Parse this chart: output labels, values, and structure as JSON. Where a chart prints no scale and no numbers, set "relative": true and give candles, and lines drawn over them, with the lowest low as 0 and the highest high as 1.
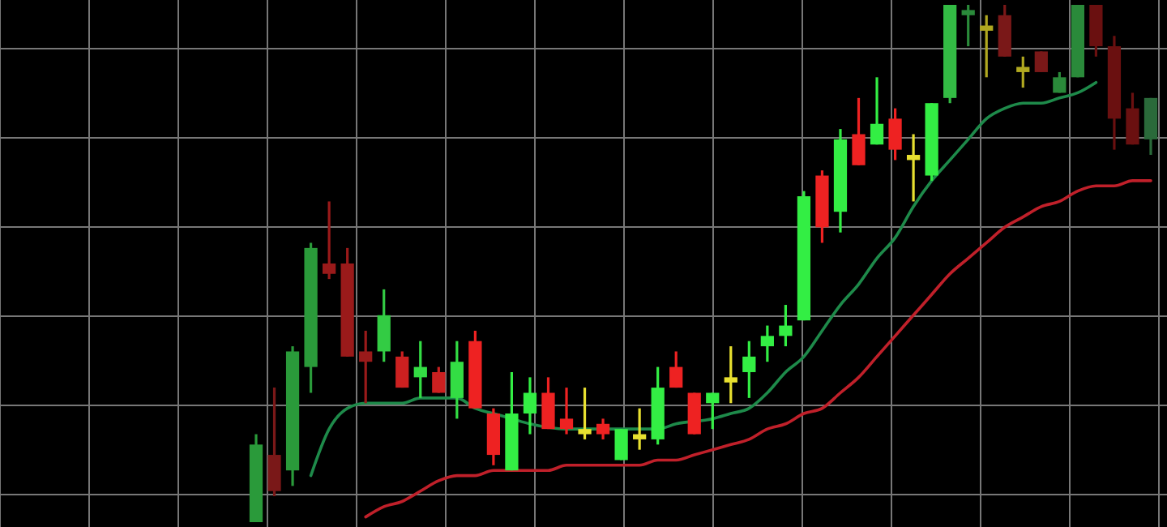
{
  "chart_data": {
    "type": "candlestick",
    "relative": true,
    "grid": true,
    "categories": [
      null,
      null,
      null,
      null,
      null,
      null,
      null,
      null,
      null,
      null,
      null,
      null,
      null,
      null,
      null,
      null,
      null,
      null,
      null,
      null,
      null,
      null,
      null,
      null,
      null,
      null,
      null,
      null,
      null,
      null,
      null,
      null,
      null,
      null,
      null,
      null,
      null,
      null,
      null,
      null,
      null,
      null,
      null,
      null,
      null,
      null,
      null,
      null,
      null,
      null
    ],
    "ohlc": [
      [
        0,
        0.17,
        0,
        0.15
      ],
      [
        0.13,
        0.26,
        0.05,
        0.06
      ],
      [
        0.1,
        0.34,
        0.07,
        0.33
      ],
      [
        0.3,
        0.54,
        0.25,
        0.53
      ],
      [
        0.5,
        0.62,
        0.47,
        0.48
      ],
      [
        0.5,
        0.53,
        0.32,
        0.32
      ],
      [
        0.33,
        0.37,
        0.23,
        0.31
      ],
      [
        0.33,
        0.45,
        0.31,
        0.4
      ],
      [
        0.32,
        0.33,
        0.26,
        0.26
      ],
      [
        0.28,
        0.35,
        0.24,
        0.3
      ],
      [
        0.29,
        0.3,
        0.25,
        0.25
      ],
      [
        0.24,
        0.35,
        0.2,
        0.31
      ],
      [
        0.35,
        0.37,
        0.22,
        0.22
      ],
      [
        0.21,
        0.22,
        0.11,
        0.13
      ],
      [
        0.1,
        0.29,
        0.1,
        0.21
      ],
      [
        0.21,
        0.28,
        0.17,
        0.25
      ],
      [
        0.25,
        0.28,
        0.18,
        0.18
      ],
      [
        0.2,
        0.26,
        0.17,
        0.18
      ],
      [
        0.18,
        0.26,
        0.16,
        0.17
      ],
      [
        0.19,
        0.2,
        0.16,
        0.17
      ],
      [
        0.12,
        0.18,
        0.12,
        0.18
      ],
      [
        0.17,
        0.22,
        0.14,
        0.16
      ],
      [
        0.16,
        0.3,
        0.15,
        0.26
      ],
      [
        0.3,
        0.33,
        0.26,
        0.26
      ],
      [
        0.25,
        0.25,
        0.17,
        0.17
      ],
      [
        0.23,
        0.25,
        0.18,
        0.25
      ],
      [
        0.28,
        0.34,
        0.23,
        0.27
      ],
      [
        0.29,
        0.35,
        0.24,
        0.32
      ],
      [
        0.34,
        0.38,
        0.31,
        0.36
      ],
      [
        0.36,
        0.42,
        0.34,
        0.38
      ],
      [
        0.39,
        0.64,
        0.39,
        0.63
      ],
      [
        0.67,
        0.68,
        0.54,
        0.57
      ],
      [
        0.6,
        0.76,
        0.56,
        0.74
      ],
      [
        0.75,
        0.82,
        0.69,
        0.69
      ],
      [
        0.73,
        0.86,
        0.73,
        0.77
      ],
      [
        0.78,
        0.8,
        0.7,
        0.72
      ],
      [
        0.71,
        0.75,
        0.62,
        0.7
      ],
      [
        0.67,
        0.81,
        0.66,
        0.81
      ],
      [
        0.82,
        1,
        0.81,
        1
      ],
      [
        0.98,
        1,
        0.92,
        0.99
      ],
      [
        0.96,
        0.98,
        0.86,
        0.95
      ],
      [
        0.98,
        1,
        0.9,
        0.9
      ],
      [
        0.88,
        0.9,
        0.84,
        0.87
      ],
      [
        0.91,
        0.91,
        0.87,
        0.87
      ],
      [
        0.83,
        0.87,
        0.83,
        0.86
      ],
      [
        0.86,
        1,
        0.86,
        1
      ],
      [
        1,
        1,
        0.9,
        0.92
      ],
      [
        0.92,
        0.94,
        0.72,
        0.78
      ],
      [
        0.8,
        0.83,
        0.73,
        0.73
      ],
      [
        0.74,
        0.82,
        0.71,
        0.82
      ]
    ],
    "colors": [
      "#2a9a3a",
      "#7a1818",
      "#2a9a3a",
      "#2a9a3a",
      "#9a1a1a",
      "#9a1a1a",
      "#9a1a1a",
      "#33cc44",
      "#cc2020",
      "#33dd44",
      "#cc2020",
      "#33dd44",
      "#ee2222",
      "#ee2222",
      "#33ee44",
      "#33ee44",
      "#ee2222",
      "#ee2222",
      "#e8e030",
      "#ee2222",
      "#33ee44",
      "#e8e030",
      "#33ee44",
      "#ee2222",
      "#ee2222",
      "#33ee44",
      "#e8e030",
      "#33ee44",
      "#33ee44",
      "#33ee44",
      "#33ee44",
      "#ee2222",
      "#33ee44",
      "#ee2222",
      "#33ee44",
      "#ee2222",
      "#e8e030",
      "#33ee44",
      "#33bb44",
      "#2a8a3a",
      "#b0a820",
      "#7a1818",
      "#b0a820",
      "#7a1818",
      "#2a8a3a",
      "#2a8a3a",
      "#6a1010",
      "#6a1010",
      "#6a1010",
      "#2a6a3a"
    ],
    "series": [
      {
        "type": "line",
        "color": "#1e8a4a",
        "values": [
          null,
          null,
          null,
          0.09,
          0.18,
          0.22,
          0.23,
          0.23,
          0.23,
          0.24,
          0.24,
          0.24,
          0.22,
          0.21,
          0.2,
          0.19,
          null,
          0.18,
          0.18,
          null,
          0.18,
          0.18,
          0.18,
          0.19,
          null,
          0.2,
          0.21,
          0.22,
          0.25,
          0.29,
          0.32,
          0.37,
          0.42,
          0.46,
          0.51,
          0.55,
          0.61,
          0.66,
          0.7,
          0.74,
          0.78,
          0.8,
          0.81,
          0.81,
          0.82,
          0.83,
          0.85,
          null,
          null,
          null
        ]
      },
      {
        "type": "line",
        "color": "#c0202a",
        "values": [
          null,
          null,
          null,
          null,
          null,
          null,
          0.01,
          0.03,
          0.04,
          0.06,
          0.08,
          0.09,
          0.09,
          0.1,
          0.1,
          0.1,
          0.1,
          0.11,
          0.11,
          0.11,
          0.11,
          0.11,
          0.12,
          0.12,
          0.13,
          0.14,
          0.15,
          0.16,
          0.18,
          0.19,
          0.21,
          0.22,
          0.25,
          0.28,
          0.32,
          0.36,
          0.4,
          0.44,
          0.48,
          0.51,
          0.54,
          0.57,
          0.59,
          0.61,
          0.62,
          0.64,
          0.65,
          0.65,
          0.66,
          0.66
        ]
      }
    ]
  }
}
